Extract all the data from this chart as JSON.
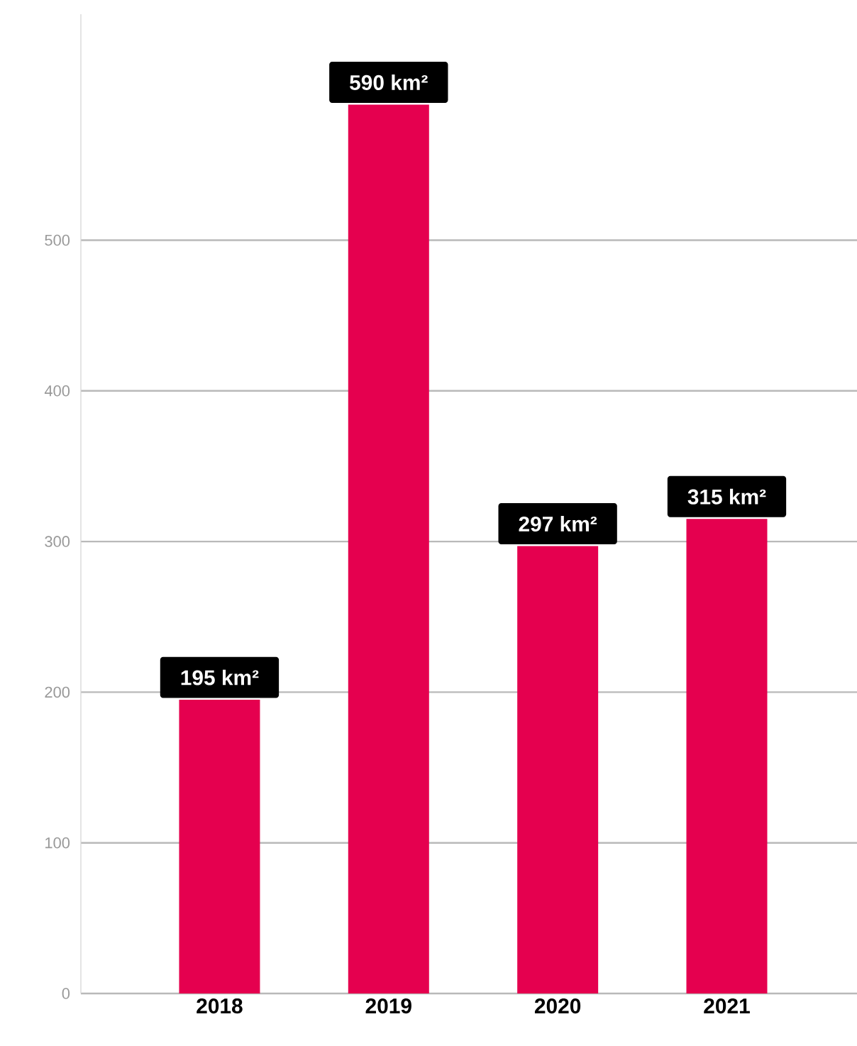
{
  "chart_data": {
    "type": "bar",
    "categories": [
      "2018",
      "2019",
      "2020",
      "2021"
    ],
    "values": [
      195,
      590,
      297,
      315
    ],
    "value_labels": [
      "195 km²",
      "590 km²",
      "297 km²",
      "315 km²"
    ],
    "color": "#e5004f",
    "ylim": [
      0,
      650
    ],
    "yticks": [
      0,
      100,
      200,
      300,
      400,
      500
    ],
    "grid": "y"
  }
}
